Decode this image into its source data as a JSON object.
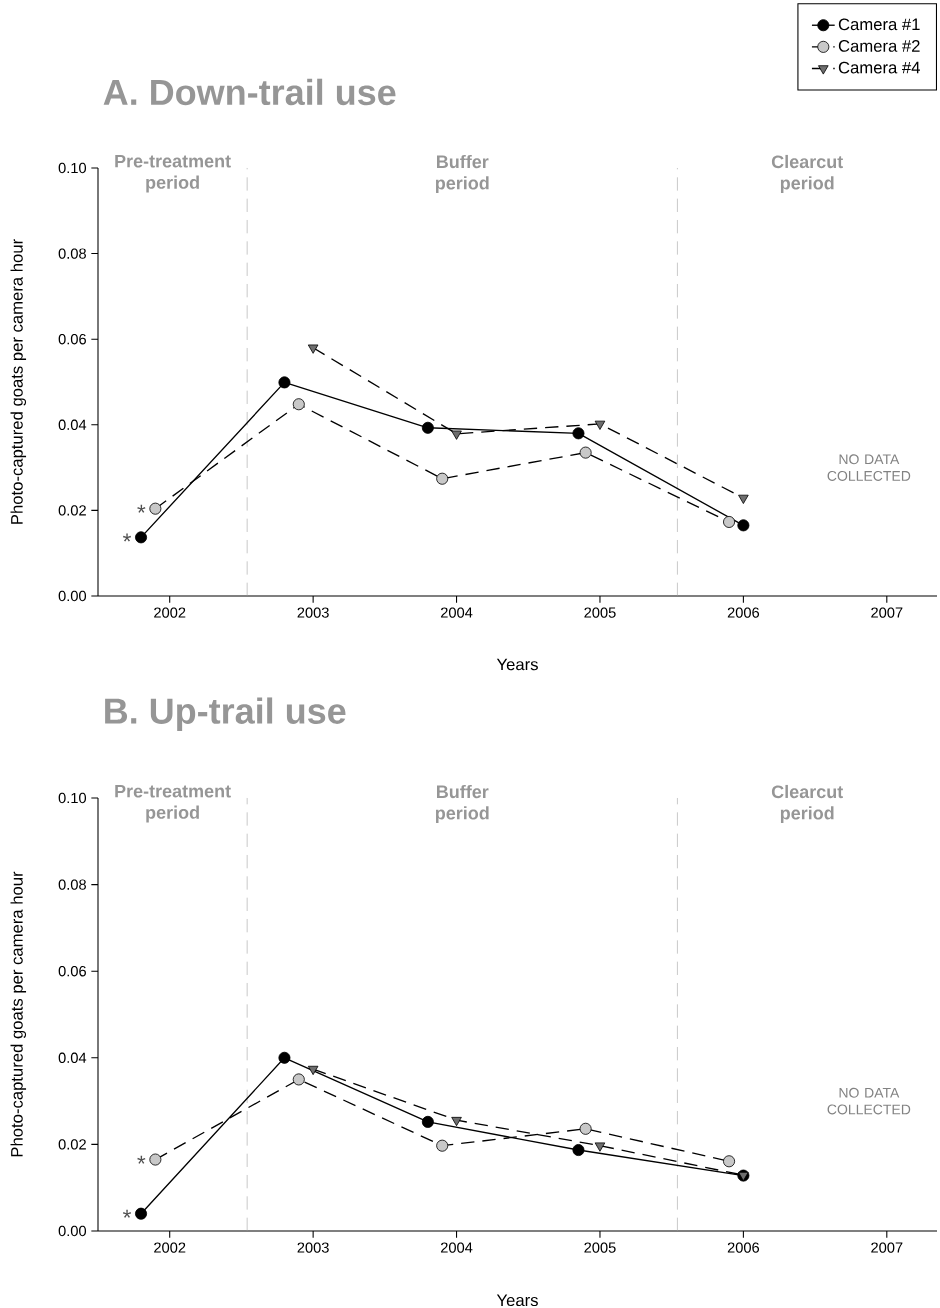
{
  "chart_data": [
    {
      "type": "line",
      "title": "A. Down-trail use",
      "xlabel": "Years",
      "ylabel": "Photo-captured goats per camera hour",
      "xlim": [
        2001.5,
        2007.35
      ],
      "xticks": [
        2002,
        2003,
        2004,
        2005,
        2006,
        2007
      ],
      "ylim": [
        0,
        0.1
      ],
      "yticks": [
        {
          "value": 0,
          "label": "0.00"
        },
        {
          "value": 0.02,
          "label": "0.02"
        },
        {
          "value": 0.04,
          "label": "0.04"
        },
        {
          "value": 0.06,
          "label": "0.06"
        },
        {
          "value": 0.08,
          "label": "0.08"
        },
        {
          "value": 0.1,
          "label": "0.10"
        }
      ],
      "legend": "top right",
      "series": [
        {
          "name": "Camera #1",
          "color": "#000000",
          "marker": "circle",
          "line_style": "solid",
          "x": [
            2001.8,
            2002.8,
            2003.8,
            2004.85,
            2006.0
          ],
          "values": [
            0.0137,
            0.0499,
            0.0393,
            0.038,
            0.0165
          ]
        },
        {
          "name": "Camera #2",
          "color": "#c8c8c8",
          "marker": "circle",
          "line_style": "dashed",
          "x": [
            2001.9,
            2002.9,
            2003.9,
            2004.9,
            2005.9
          ],
          "values": [
            0.0204,
            0.0448,
            0.0274,
            0.0335,
            0.0173
          ]
        },
        {
          "name": "Camera #4",
          "color": "#6e6e6e",
          "marker": "triangle",
          "line_style": "dashed",
          "x": [
            2003.0,
            2004.0,
            2005.0,
            2006.0
          ],
          "values": [
            0.058,
            0.0379,
            0.0402,
            0.0229
          ]
        }
      ],
      "ref_lines": [
        {
          "axis": "x",
          "value": 2002.54,
          "color": "#999999",
          "line_style": "dashed"
        },
        {
          "axis": "x",
          "value": 2005.54,
          "color": "#999999",
          "line_style": "dashed"
        }
      ],
      "annotations": [
        "Pre-treatment period",
        "Buffer period",
        "Clearcut period",
        "*",
        "*",
        "NO DATA COLLECTED"
      ]
    },
    {
      "type": "line",
      "title": "B. Up-trail use",
      "xlabel": "Years",
      "ylabel": "Photo-captured goats per camera hour",
      "xlim": [
        2001.5,
        2007.35
      ],
      "xticks": [
        2002,
        2003,
        2004,
        2005,
        2006,
        2007
      ],
      "ylim": [
        0,
        0.1
      ],
      "yticks": [
        {
          "value": 0,
          "label": "0.00"
        },
        {
          "value": 0.02,
          "label": "0.02"
        },
        {
          "value": 0.04,
          "label": "0.04"
        },
        {
          "value": 0.06,
          "label": "0.06"
        },
        {
          "value": 0.08,
          "label": "0.08"
        },
        {
          "value": 0.1,
          "label": "0.10"
        }
      ],
      "series": [
        {
          "color": "#000000",
          "marker": "circle",
          "line_style": "solid",
          "x": [
            2001.8,
            2002.8,
            2003.8,
            2004.85,
            2006.0
          ],
          "values": [
            0.004,
            0.04,
            0.0252,
            0.0187,
            0.0128
          ]
        },
        {
          "color": "#c8c8c8",
          "marker": "circle",
          "line_style": "dashed",
          "x": [
            2001.9,
            2002.9,
            2003.9,
            2004.9,
            2005.9
          ],
          "values": [
            0.0165,
            0.035,
            0.0197,
            0.0236,
            0.0161
          ]
        },
        {
          "color": "#6e6e6e",
          "marker": "triangle",
          "line_style": "dashed",
          "x": [
            2003.0,
            2004.0,
            2005.0,
            2006.0
          ],
          "values": [
            0.0374,
            0.0256,
            0.0197,
            0.0129
          ]
        }
      ],
      "ref_lines": [
        {
          "axis": "x",
          "value": 2002.54,
          "color": "#999999",
          "line_style": "dashed"
        },
        {
          "axis": "x",
          "value": 2005.54,
          "color": "#999999",
          "line_style": "dashed"
        }
      ],
      "annotations": [
        "Pre-treatment period",
        "Buffer period",
        "Clearcut period",
        "*",
        "*",
        "NO DATA COLLECTED"
      ]
    }
  ]
}
